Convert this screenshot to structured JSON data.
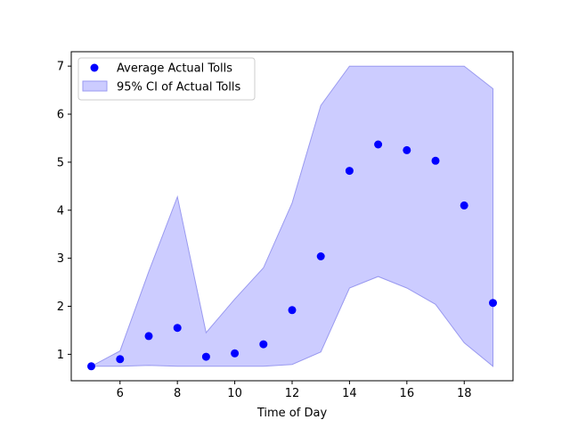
{
  "chart_data": {
    "type": "scatter",
    "title": "",
    "xlabel": "Time of Day",
    "ylabel": "",
    "xlim": [
      4.3,
      19.7
    ],
    "ylim": [
      0.45,
      7.3
    ],
    "x_ticks": [
      6,
      8,
      10,
      12,
      14,
      16,
      18
    ],
    "y_ticks": [
      1,
      2,
      3,
      4,
      5,
      6,
      7
    ],
    "grid": false,
    "legend_position": "upper-left",
    "colors": {
      "points": "#0000ff",
      "band_fill": "#ccccff",
      "band_edge": "#9a9af0"
    },
    "series": [
      {
        "name": "Average Actual Tolls",
        "kind": "points",
        "x": [
          5,
          6,
          7,
          8,
          9,
          10,
          11,
          12,
          13,
          14,
          15,
          16,
          17,
          18,
          19
        ],
        "y": [
          0.75,
          0.9,
          1.38,
          1.55,
          0.95,
          1.02,
          1.21,
          1.92,
          3.04,
          4.82,
          5.37,
          5.25,
          5.03,
          4.1,
          2.07
        ]
      },
      {
        "name": "95% CI of Actual Tolls",
        "kind": "band",
        "x": [
          5,
          6,
          7,
          8,
          9,
          10,
          11,
          12,
          13,
          14,
          15,
          16,
          17,
          18,
          19
        ],
        "lower": [
          0.75,
          0.75,
          0.77,
          0.75,
          0.75,
          0.75,
          0.75,
          0.79,
          1.05,
          2.38,
          2.62,
          2.38,
          2.04,
          1.24,
          0.75
        ],
        "upper": [
          0.75,
          1.07,
          2.72,
          4.28,
          1.45,
          2.15,
          2.8,
          4.15,
          6.18,
          7.0,
          7.0,
          7.0,
          7.0,
          7.0,
          6.53
        ]
      }
    ]
  }
}
